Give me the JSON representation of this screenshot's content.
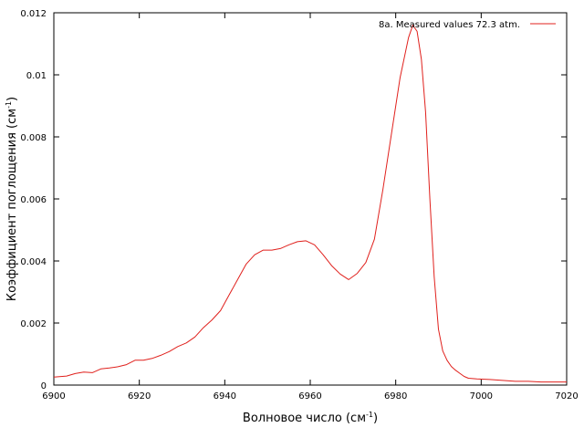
{
  "chart_data": {
    "type": "line",
    "xlabel": "Волновое число (см",
    "xlabel_sup": "-1",
    "xlabel_tail": ")",
    "ylabel": "Коэффициент поглощения (см",
    "ylabel_sup": "-1",
    "ylabel_tail": ")",
    "xlim": [
      6900,
      7020
    ],
    "ylim": [
      0,
      0.012
    ],
    "x_ticks": [
      6900,
      6920,
      6940,
      6960,
      6980,
      7000,
      7020
    ],
    "x_tick_labels": [
      "6900",
      "6920",
      "6940",
      "6960",
      "6980",
      "7000",
      "7020"
    ],
    "y_ticks": [
      0,
      0.002,
      0.004,
      0.006,
      0.008,
      0.01,
      0.012
    ],
    "y_tick_labels": [
      "0",
      "0.002",
      "0.004",
      "0.006",
      "0.008",
      "0.01",
      "0.012"
    ],
    "grid": false,
    "legend_position": "top-right",
    "series": [
      {
        "name": "8a. Measured values 72.3 atm.",
        "color": "#e0201c",
        "x": [
          6900,
          6903,
          6905,
          6907,
          6909,
          6911,
          6913,
          6915,
          6917,
          6919,
          6921,
          6923,
          6925,
          6927,
          6929,
          6931,
          6933,
          6935,
          6937,
          6939,
          6941,
          6943,
          6945,
          6947,
          6949,
          6951,
          6953,
          6955,
          6957,
          6959,
          6961,
          6963,
          6965,
          6967,
          6969,
          6971,
          6973,
          6975,
          6977,
          6979,
          6981,
          6983,
          6984,
          6985,
          6986,
          6987,
          6988,
          6989,
          6990,
          6991,
          6992,
          6993,
          6994,
          6995,
          6996,
          6997,
          6999,
          7002,
          7005,
          7008,
          7011,
          7014,
          7017,
          7020
        ],
        "y": [
          0.00026,
          0.00029,
          0.00037,
          0.00042,
          0.0004,
          0.00052,
          0.00055,
          0.00059,
          0.00066,
          0.0008,
          0.0008,
          0.00086,
          0.00096,
          0.00108,
          0.00124,
          0.00136,
          0.00155,
          0.00185,
          0.0021,
          0.0024,
          0.0029,
          0.0034,
          0.0039,
          0.0042,
          0.00435,
          0.00435,
          0.0044,
          0.00452,
          0.00462,
          0.00465,
          0.00452,
          0.0042,
          0.00385,
          0.00358,
          0.0034,
          0.0036,
          0.00395,
          0.0047,
          0.0063,
          0.0081,
          0.0099,
          0.0112,
          0.0116,
          0.0114,
          0.0105,
          0.0088,
          0.006,
          0.0035,
          0.0018,
          0.0011,
          0.0008,
          0.0006,
          0.00048,
          0.00038,
          0.00028,
          0.00022,
          0.0002,
          0.00018,
          0.00015,
          0.00012,
          0.00012,
          0.0001,
          0.0001,
          0.0001
        ]
      }
    ]
  }
}
